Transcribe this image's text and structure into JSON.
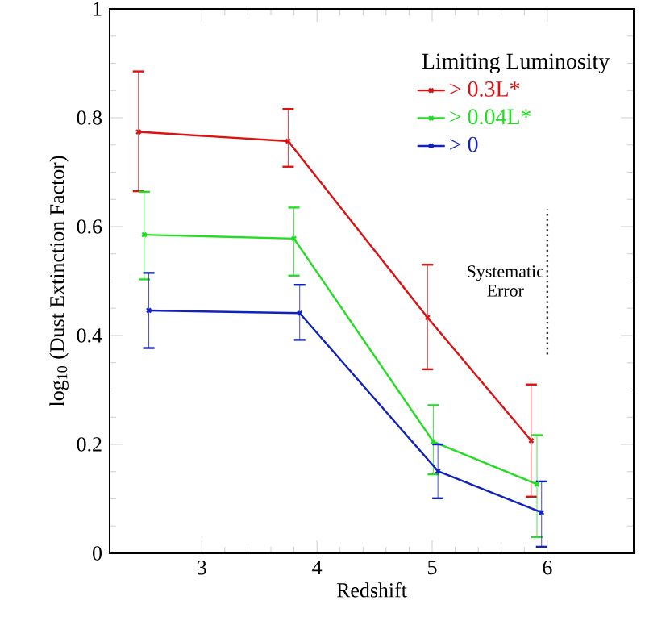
{
  "chart_data": {
    "type": "line",
    "xlabel": "Redshift",
    "ylabel": "log$_{10}$ (Dust Extinction Factor)",
    "legend_title": "Limiting Luminosity",
    "legend": "top right",
    "marker": "cross",
    "line_style": "solid",
    "grid": false,
    "xlim": [
      2.2,
      6.75
    ],
    "ylim": [
      0,
      1
    ],
    "xticks": [
      3,
      4,
      5,
      6
    ],
    "yticks": [
      0,
      0.2,
      0.4,
      0.6,
      0.8,
      1
    ],
    "series": [
      {
        "name": "> 0.3L*",
        "color": "#dd1111",
        "x": [
          2.45,
          3.75,
          4.96,
          5.86
        ],
        "values": [
          0.774,
          0.757,
          0.433,
          0.207
        ],
        "errors": [
          [
            0.665,
            0.885
          ],
          [
            0.71,
            0.816
          ],
          [
            0.338,
            0.53
          ],
          [
            0.104,
            0.31
          ]
        ]
      },
      {
        "name": "> 0.04L*",
        "color": "#22dd22",
        "x": [
          2.5,
          3.8,
          5.01,
          5.91
        ],
        "values": [
          0.585,
          0.578,
          0.205,
          0.127
        ],
        "errors": [
          [
            0.503,
            0.664
          ],
          [
            0.51,
            0.635
          ],
          [
            0.145,
            0.272
          ],
          [
            0.03,
            0.217
          ]
        ]
      },
      {
        "name": "> 0",
        "color": "#1122bb",
        "x": [
          2.54,
          3.85,
          5.05,
          5.95
        ],
        "values": [
          0.446,
          0.441,
          0.151,
          0.075
        ],
        "errors": [
          [
            0.377,
            0.515
          ],
          [
            0.392,
            0.493
          ],
          [
            0.101,
            0.2
          ],
          [
            0.012,
            0.132
          ]
        ]
      },
      {
        "color": "#333333",
        "x": [
          6,
          6
        ],
        "values": [
          0.365,
          0.632
        ],
        "line_style": "dotted",
        "marker": "none"
      }
    ],
    "annotations": [
      "Systematic Error"
    ]
  }
}
